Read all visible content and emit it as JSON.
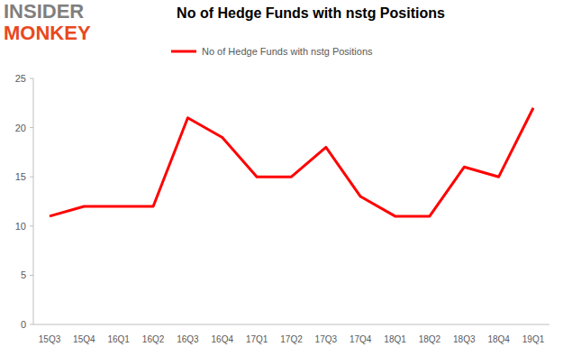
{
  "chart_data": {
    "type": "line",
    "title": "No of Hedge Funds with nstg Positions",
    "annotations": [
      "INSIDER",
      "MONKEY"
    ],
    "categories": [
      "15Q3",
      "15Q4",
      "16Q1",
      "16Q2",
      "16Q3",
      "16Q4",
      "17Q1",
      "17Q2",
      "17Q3",
      "17Q4",
      "18Q1",
      "18Q2",
      "18Q3",
      "18Q4",
      "19Q1"
    ],
    "series": [
      {
        "name": "No of Hedge Funds with nstg Positions",
        "color": "#ff0000",
        "values": [
          11,
          12,
          12,
          12,
          21,
          19,
          15,
          15,
          18,
          13,
          11,
          11,
          16,
          15,
          22
        ]
      }
    ],
    "ylim": [
      0,
      25
    ],
    "yticks": [
      0,
      5,
      10,
      15,
      20,
      25
    ],
    "grid": false,
    "legend": "top"
  }
}
